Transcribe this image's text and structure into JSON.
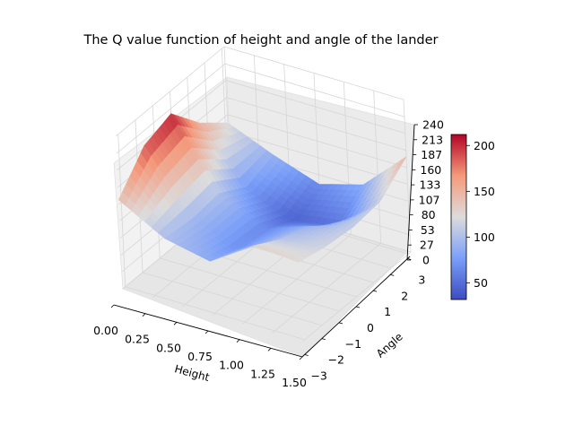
{
  "chart_data": {
    "type": "surface",
    "title": "The Q value function of height and angle of the lander",
    "xlabel": "Height",
    "ylabel": "Angle",
    "zlabel": "",
    "x_ticks": [
      "0.00",
      "0.25",
      "0.50",
      "0.75",
      "1.00",
      "1.25",
      "1.50"
    ],
    "y_ticks": [
      "−3",
      "−2",
      "−1",
      "0",
      "1",
      "2",
      "3"
    ],
    "z_ticks": [
      "0",
      "27",
      "53",
      "80",
      "107",
      "133",
      "160",
      "187",
      "213",
      "240"
    ],
    "xlim": [
      0,
      1.5
    ],
    "ylim": [
      -3.14,
      3.14
    ],
    "zlim": [
      0,
      240
    ],
    "colormap": "coolwarm",
    "colorbar": {
      "ticks": [
        "50",
        "100",
        "150",
        "200"
      ],
      "range": [
        32,
        212
      ]
    },
    "surface_samples": {
      "height": [
        0.0,
        0.375,
        0.75,
        1.125,
        1.5
      ],
      "angle": [
        -3.14,
        -1.57,
        0.0,
        1.57,
        3.14
      ],
      "q_value": [
        [
          120,
          155,
          205,
          190,
          140
        ],
        [
          90,
          75,
          100,
          95,
          100
        ],
        [
          65,
          45,
          65,
          70,
          85
        ],
        [
          85,
          55,
          90,
          105,
          130
        ],
        [
          150,
          115,
          110,
          115,
          125
        ]
      ]
    },
    "grid": true
  }
}
